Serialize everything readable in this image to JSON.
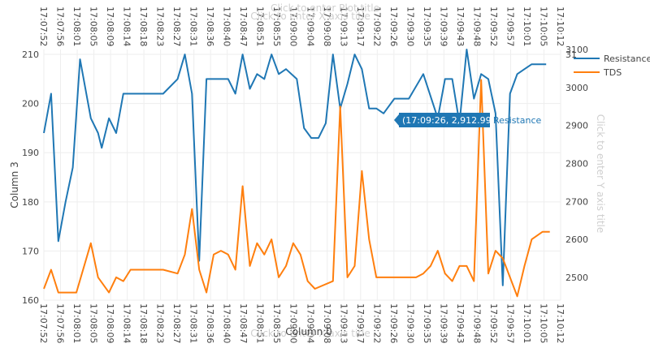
{
  "chart_data": {
    "type": "line",
    "title": "Click to enter Plot title",
    "xlabel": "Column 0",
    "x_placeholder_top": "Click to enter X axis title",
    "x_placeholder_bottom": "Click to enter X axis title",
    "ylabel": "Column 3",
    "y2label": "Click to enter Y axis title",
    "ylim": [
      160,
      211
    ],
    "y2lim": [
      2440,
      3100
    ],
    "y_ticks": [
      160,
      170,
      180,
      190,
      200,
      210
    ],
    "y2_ticks": [
      2500,
      2600,
      2700,
      2800,
      2900,
      3000,
      3100
    ],
    "y2_top_label": "31",
    "x_ticks": [
      "17:07:52",
      "17:07:56",
      "17:08:01",
      "17:08:05",
      "17:08:09",
      "17:08:14",
      "17:08:18",
      "17:08:23",
      "17:08:27",
      "17:08:31",
      "17:08:36",
      "17:08:40",
      "17:08:47",
      "17:08:51",
      "17:08:55",
      "17:09:00",
      "17:09:04",
      "17:09:08",
      "17:09:13",
      "17:09:17",
      "17:09:22",
      "17:09:26",
      "17:09:30",
      "17:09:35",
      "17:09:39",
      "17:09:43",
      "17:09:48",
      "17:09:52",
      "17:09:57",
      "17:10:01",
      "17:10:05",
      "17:10:12"
    ],
    "x_start_sec": 61672,
    "x_end_sec": 61815,
    "grid": true,
    "legend_position": "top-right",
    "series": [
      {
        "name": "Resistance",
        "axis": "y",
        "color": "#1f77b4",
        "x": [
          "17:07:52",
          "17:07:54",
          "17:07:56",
          "17:07:58",
          "17:08:00",
          "17:08:02",
          "17:08:05",
          "17:08:07",
          "17:08:08",
          "17:08:10",
          "17:08:12",
          "17:08:14",
          "17:08:16",
          "17:08:18",
          "17:08:22",
          "17:08:25",
          "17:08:29",
          "17:08:31",
          "17:08:33",
          "17:08:35",
          "17:08:37",
          "17:08:39",
          "17:08:43",
          "17:08:45",
          "17:08:47",
          "17:08:49",
          "17:08:51",
          "17:08:53",
          "17:08:55",
          "17:08:57",
          "17:08:59",
          "17:09:02",
          "17:09:04",
          "17:09:06",
          "17:09:08",
          "17:09:10",
          "17:09:12",
          "17:09:14",
          "17:09:16",
          "17:09:18",
          "17:09:20",
          "17:09:22",
          "17:09:24",
          "17:09:26",
          "17:09:29",
          "17:09:33",
          "17:09:37",
          "17:09:41",
          "17:09:43",
          "17:09:45",
          "17:09:47",
          "17:09:49",
          "17:09:51",
          "17:09:53",
          "17:09:55",
          "17:09:57",
          "17:09:59",
          "17:10:01",
          "17:10:03",
          "17:10:05",
          "17:10:07",
          "17:10:09",
          "17:10:11"
        ],
        "values": [
          194,
          202,
          172,
          180,
          187,
          209,
          197,
          194,
          191,
          197,
          194,
          202,
          202,
          202,
          202,
          202,
          205,
          210,
          202,
          168,
          205,
          205,
          205,
          202,
          210,
          203,
          206,
          205,
          210,
          206,
          207,
          205,
          195,
          193,
          193,
          196,
          210,
          199,
          204,
          210,
          207,
          199,
          199,
          198,
          201,
          201,
          206,
          197,
          205,
          205,
          196,
          211,
          201,
          206,
          205,
          198,
          163,
          202,
          206,
          207,
          208,
          208,
          208
        ]
      },
      {
        "name": "TDS",
        "axis": "y2",
        "color": "#ff7f0e",
        "x": [
          "17:07:52",
          "17:07:54",
          "17:07:56",
          "17:07:58",
          "17:08:01",
          "17:08:05",
          "17:08:07",
          "17:08:10",
          "17:08:12",
          "17:08:14",
          "17:08:16",
          "17:08:18",
          "17:08:22",
          "17:08:25",
          "17:08:29",
          "17:08:31",
          "17:08:33",
          "17:08:35",
          "17:08:37",
          "17:08:39",
          "17:08:41",
          "17:08:43",
          "17:08:45",
          "17:08:47",
          "17:08:49",
          "17:08:51",
          "17:08:53",
          "17:08:55",
          "17:08:57",
          "17:08:59",
          "17:09:01",
          "17:09:03",
          "17:09:05",
          "17:09:07",
          "17:09:12",
          "17:09:14",
          "17:09:16",
          "17:09:18",
          "17:09:20",
          "17:09:22",
          "17:09:24",
          "17:09:26",
          "17:09:29",
          "17:09:33",
          "17:09:35",
          "17:09:37",
          "17:09:39",
          "17:09:41",
          "17:09:43",
          "17:09:45",
          "17:09:47",
          "17:09:49",
          "17:09:51",
          "17:09:53",
          "17:09:55",
          "17:09:57",
          "17:09:59",
          "17:10:01",
          "17:10:03",
          "17:10:05",
          "17:10:07",
          "17:10:10",
          "17:10:12"
        ],
        "values": [
          2470,
          2520,
          2460,
          2460,
          2460,
          2590,
          2500,
          2460,
          2500,
          2490,
          2520,
          2520,
          2520,
          2520,
          2510,
          2560,
          2680,
          2520,
          2460,
          2560,
          2570,
          2560,
          2520,
          2740,
          2530,
          2590,
          2560,
          2600,
          2500,
          2530,
          2590,
          2560,
          2490,
          2470,
          2490,
          2950,
          2500,
          2530,
          2780,
          2600,
          2500,
          2500,
          2500,
          2500,
          2500,
          2510,
          2530,
          2570,
          2510,
          2490,
          2530,
          2530,
          2490,
          3020,
          2510,
          2570,
          2550,
          2500,
          2450,
          2530,
          2600,
          2620,
          2620
        ]
      }
    ],
    "tooltip": {
      "text": "(17:09:26, 2,912.99)",
      "series": "Resistance"
    }
  }
}
